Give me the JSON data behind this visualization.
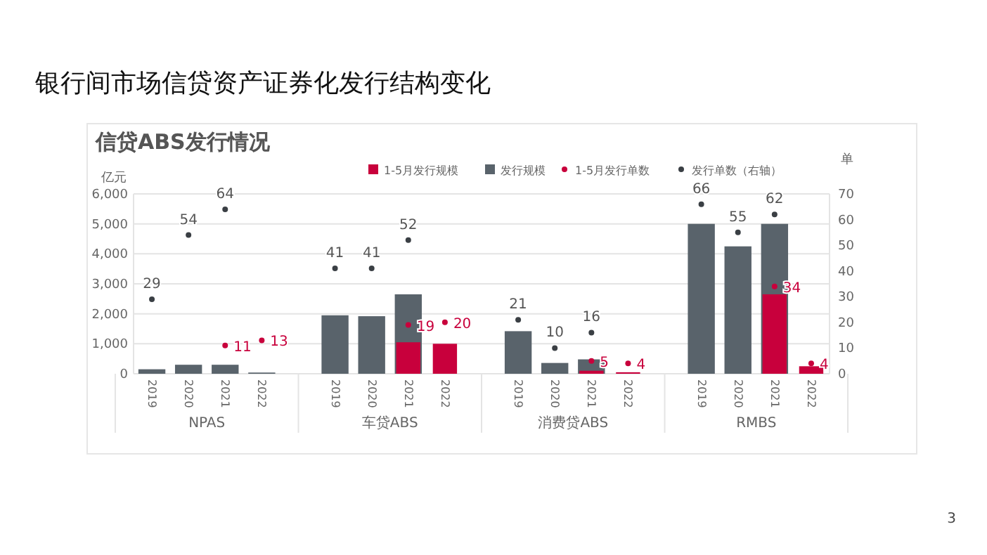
{
  "chart_data": {
    "type": "bar",
    "title": "银行间市场信贷资产证券化发行结构变化",
    "subtitle": "信贷ABS发行情况",
    "ylabel": "亿元",
    "y2label": "单",
    "categories": [
      "2019",
      "2020",
      "2021",
      "2022",
      null,
      "2019",
      "2020",
      "2021",
      "2022",
      null,
      "2019",
      "2020",
      "2021",
      "2022",
      null,
      "2019",
      "2020",
      "2021",
      "2022"
    ],
    "annotations": [
      "NPAS",
      "车贷ABS",
      "消费贷ABS",
      "RMBS",
      "3"
    ],
    "series": [
      {
        "name": "1-5月发行规模",
        "color": "#c8003c",
        "values": [
          null,
          null,
          null,
          null,
          null,
          null,
          null,
          1050,
          1000,
          null,
          null,
          null,
          100,
          50,
          null,
          null,
          null,
          2650,
          250
        ]
      },
      {
        "name": "发行规模",
        "color": "#59636b",
        "values": [
          150,
          300,
          300,
          40,
          null,
          1950,
          1920,
          2650,
          null,
          null,
          1420,
          360,
          480,
          null,
          null,
          5000,
          4250,
          5000,
          null
        ]
      },
      {
        "name": "1-5月发行单数",
        "type": "scatter",
        "axis": "y2",
        "color": "#c8003c",
        "values": [
          null,
          null,
          11,
          13,
          null,
          null,
          null,
          19,
          20,
          null,
          null,
          null,
          5,
          4,
          null,
          null,
          null,
          34,
          4
        ],
        "value_labels": [
          null,
          null,
          "11",
          "13",
          null,
          null,
          null,
          "19",
          "20",
          null,
          null,
          null,
          "5",
          "4",
          null,
          null,
          null,
          "34",
          "4"
        ]
      },
      {
        "name": "发行单数（右轴）",
        "type": "scatter",
        "axis": "y2",
        "color": "#3a3f44",
        "values": [
          29,
          54,
          64,
          null,
          null,
          41,
          41,
          52,
          null,
          null,
          21,
          10,
          16,
          null,
          null,
          66,
          55,
          62,
          null
        ],
        "value_labels": [
          "29",
          "54",
          "64",
          null,
          null,
          "41",
          "41",
          "52",
          null,
          null,
          "21",
          "10",
          "16",
          null,
          null,
          "66",
          "55",
          "62",
          null
        ]
      }
    ],
    "ylim": [
      0,
      6000
    ],
    "yticks": [
      {
        "value": 0,
        "label": "0"
      },
      {
        "value": 1000,
        "label": "1,000"
      },
      {
        "value": 2000,
        "label": "2,000"
      },
      {
        "value": 3000,
        "label": "3,000"
      },
      {
        "value": 4000,
        "label": "4,000"
      },
      {
        "value": 5000,
        "label": "5,000"
      },
      {
        "value": 6000,
        "label": "6,000"
      }
    ],
    "y2lim": [
      0,
      70
    ],
    "y2ticks": [
      0,
      10,
      20,
      30,
      40,
      50,
      60,
      70
    ],
    "grid": "y",
    "legend": "top right",
    "marker": "circle"
  }
}
